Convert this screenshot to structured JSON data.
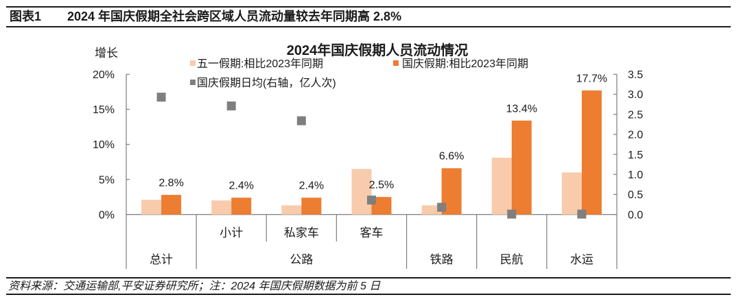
{
  "header": {
    "figure_number": "图表1",
    "title": "2024 年国庆假期全社会跨区域人员流动量较去年同期高 2.8%"
  },
  "chart_data": {
    "type": "bar",
    "title": "2024年国庆假期人员流动情况",
    "ylabel": "增长",
    "xlabel": "",
    "grid": false,
    "legend_position": "top",
    "categories": [
      "总计",
      "公路·小计",
      "公路·私家车",
      "公路·客车",
      "铁路",
      "民航",
      "水运"
    ],
    "x_axis": {
      "sub_labels": [
        "",
        "小计",
        "私家车",
        "客车",
        "",
        "",
        ""
      ],
      "groups": [
        {
          "label": "总计",
          "span": 1
        },
        {
          "label": "公路",
          "span": 3
        },
        {
          "label": "铁路",
          "span": 1
        },
        {
          "label": "民航",
          "span": 1
        },
        {
          "label": "水运",
          "span": 1
        }
      ]
    },
    "y_left": {
      "min": 0,
      "max": 20,
      "tick_values": [
        0,
        5,
        10,
        15,
        20
      ],
      "ticks": [
        "0%",
        "5%",
        "10%",
        "15%",
        "20%"
      ]
    },
    "y_right": {
      "min": 0,
      "max": 3.5,
      "tick_values": [
        0,
        0.5,
        1.0,
        1.5,
        2.0,
        2.5,
        3.0,
        3.5
      ],
      "ticks": [
        "0.0",
        "0.5",
        "1.0",
        "1.5",
        "2.0",
        "2.5",
        "3.0",
        "3.5"
      ]
    },
    "series": [
      {
        "name": "五一假期:相比2023年同期",
        "type": "bar",
        "axis": "left",
        "unit": "%",
        "color": "#F8CBAD",
        "values": [
          2.1,
          2.0,
          1.3,
          6.5,
          1.3,
          8.1,
          6.0
        ]
      },
      {
        "name": "国庆假期:相比2023年同期",
        "type": "bar",
        "axis": "left",
        "unit": "%",
        "color": "#ED7D31",
        "values": [
          2.8,
          2.4,
          2.4,
          2.5,
          6.6,
          13.4,
          17.7
        ],
        "data_labels": [
          "2.8%",
          "2.4%",
          "2.4%",
          "2.5%",
          "6.6%",
          "13.4%",
          "17.7%"
        ]
      },
      {
        "name": "国庆假期日均(右轴，亿人次)",
        "type": "scatter",
        "axis": "right",
        "unit": "亿人次",
        "color": "#7F7F7F",
        "values": [
          2.93,
          2.71,
          2.34,
          0.36,
          0.18,
          0.01,
          0.01
        ]
      }
    ],
    "axis_color": "#868686"
  },
  "footer": {
    "source": "资料来源：交通运输部,平安证券研究所；",
    "note": "注：2024 年国庆假期数据为前 5 日"
  }
}
